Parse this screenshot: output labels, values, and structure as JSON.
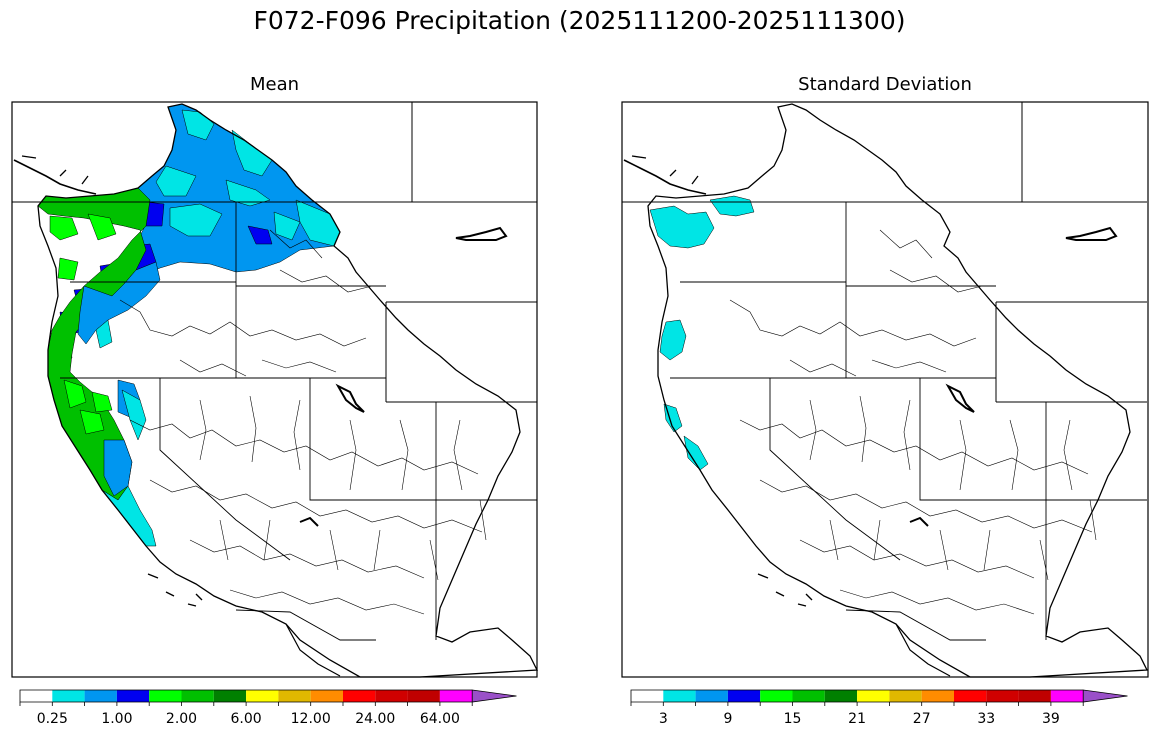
{
  "figure": {
    "title": "F072-F096 Precipitation (2025111200-2025111300)"
  },
  "panels": [
    {
      "title": "Mean",
      "colorbar": {
        "labels": [
          "0.25",
          "1.00",
          "2.00",
          "6.00",
          "12.00",
          "24.00",
          "64.00"
        ],
        "colors": [
          "#ffffff",
          "#00e5e5",
          "#0096f0",
          "#0000f0",
          "#00ff00",
          "#00c000",
          "#008000",
          "#ffff00",
          "#e0b800",
          "#ff8c00",
          "#ff0000",
          "#d00000",
          "#c00000",
          "#ff00ff",
          "#9a50c8"
        ]
      }
    },
    {
      "title": "Standard Deviation",
      "colorbar": {
        "labels": [
          "3",
          "9",
          "15",
          "21",
          "27",
          "33",
          "39"
        ],
        "colors": [
          "#ffffff",
          "#00e5e5",
          "#0096f0",
          "#0000f0",
          "#00ff00",
          "#00c000",
          "#008000",
          "#ffff00",
          "#e0b800",
          "#ff8c00",
          "#ff0000",
          "#d00000",
          "#c00000",
          "#ff00ff",
          "#9a50c8"
        ]
      }
    }
  ]
}
